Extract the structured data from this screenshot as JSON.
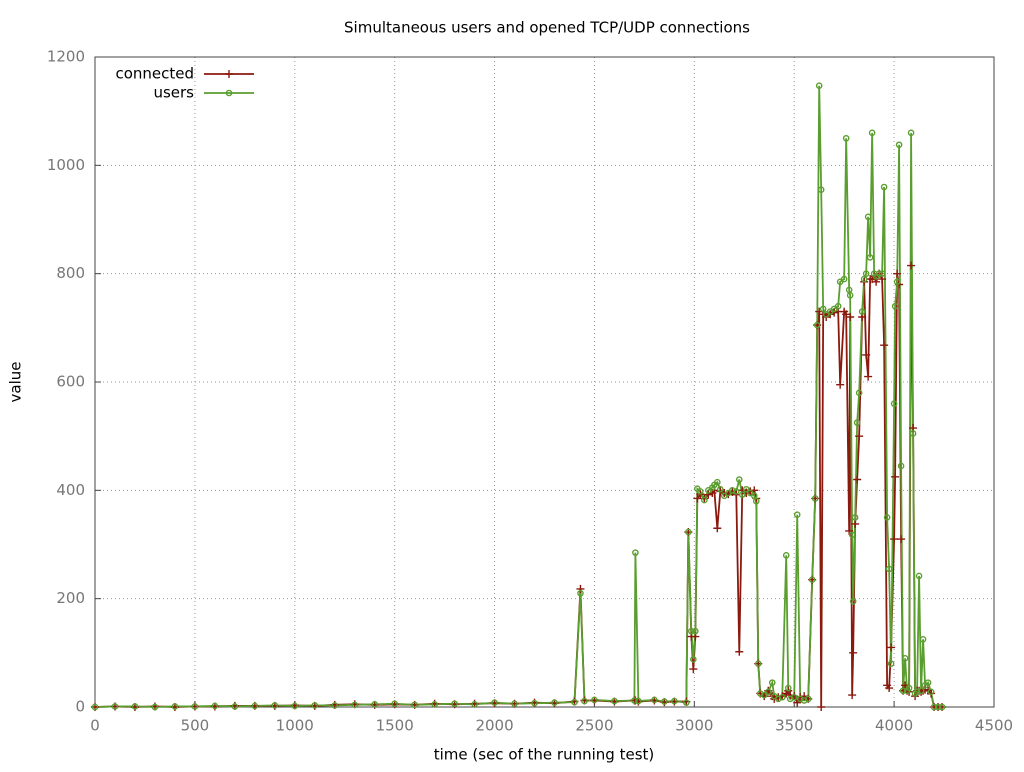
{
  "chart_data": {
    "type": "line",
    "title": "Simultaneous users and opened TCP/UDP connections",
    "xlabel": "time (sec of the running test)",
    "ylabel": "value",
    "x": [
      0,
      100,
      200,
      300,
      400,
      500,
      600,
      700,
      800,
      900,
      1000,
      1100,
      1200,
      1300,
      1400,
      1500,
      1600,
      1700,
      1800,
      1900,
      2000,
      2100,
      2200,
      2300,
      2400,
      2430,
      2450,
      2500,
      2600,
      2700,
      2705,
      2720,
      2800,
      2850,
      2900,
      2960,
      2970,
      2985,
      2995,
      3005,
      3015,
      3030,
      3050,
      3070,
      3090,
      3100,
      3115,
      3130,
      3150,
      3170,
      3190,
      3210,
      3225,
      3240,
      3260,
      3280,
      3300,
      3310,
      3320,
      3330,
      3350,
      3370,
      3390,
      3400,
      3420,
      3440,
      3460,
      3470,
      3480,
      3500,
      3515,
      3530,
      3550,
      3570,
      3590,
      3605,
      3615,
      3625,
      3635,
      3645,
      3660,
      3680,
      3700,
      3720,
      3730,
      3750,
      3760,
      3775,
      3780,
      3790,
      3795,
      3805,
      3815,
      3825,
      3840,
      3850,
      3860,
      3870,
      3880,
      3890,
      3900,
      3910,
      3925,
      3940,
      3950,
      3965,
      3975,
      3985,
      4000,
      4005,
      4015,
      4025,
      4035,
      4045,
      4055,
      4065,
      4075,
      4085,
      4095,
      4105,
      4115,
      4125,
      4135,
      4145,
      4155,
      4170,
      4185,
      4200,
      4220,
      4240
    ],
    "series": [
      {
        "name": "connected",
        "color": "#8b1a0e",
        "marker": "plus",
        "values": [
          0,
          1,
          0,
          1,
          0,
          1,
          1,
          2,
          2,
          2,
          3,
          2,
          4,
          5,
          4,
          5,
          4,
          6,
          5,
          6,
          7,
          6,
          8,
          7,
          10,
          218,
          12,
          12,
          10,
          12,
          12,
          10,
          12,
          9,
          10,
          10,
          323,
          130,
          70,
          130,
          385,
          393,
          385,
          392,
          395,
          400,
          330,
          398,
          395,
          393,
          397,
          392,
          102,
          400,
          395,
          398,
          400,
          385,
          80,
          25,
          20,
          30,
          20,
          15,
          18,
          20,
          25,
          30,
          22,
          20,
          8,
          18,
          20,
          15,
          235,
          385,
          705,
          730,
          0,
          725,
          720,
          725,
          728,
          730,
          595,
          730,
          725,
          325,
          720,
          22,
          100,
          338,
          420,
          500,
          720,
          785,
          650,
          610,
          790,
          790,
          795,
          785,
          800,
          790,
          668,
          40,
          35,
          110,
          310,
          425,
          800,
          780,
          310,
          30,
          40,
          30,
          28,
          815,
          515,
          20,
          30,
          30,
          28,
          30,
          32,
          30,
          25,
          0,
          0,
          0
        ]
      },
      {
        "name": "users",
        "color": "#5a9e2f",
        "marker": "circle",
        "values": [
          0,
          1,
          1,
          0,
          1,
          1,
          2,
          1,
          2,
          3,
          2,
          3,
          3,
          4,
          5,
          6,
          4,
          5,
          6,
          5,
          8,
          6,
          7,
          8,
          9,
          210,
          11,
          13,
          11,
          12,
          285,
          11,
          13,
          10,
          11,
          8,
          323,
          140,
          88,
          140,
          403,
          398,
          382,
          400,
          405,
          410,
          415,
          402,
          390,
          395,
          400,
          398,
          420,
          392,
          402,
          395,
          390,
          380,
          80,
          25,
          22,
          28,
          45,
          20,
          15,
          18,
          280,
          35,
          15,
          18,
          355,
          15,
          12,
          15,
          235,
          385,
          705,
          1147,
          955,
          735,
          725,
          730,
          735,
          740,
          785,
          790,
          1050,
          770,
          760,
          318,
          195,
          350,
          525,
          580,
          730,
          790,
          800,
          905,
          830,
          1060,
          800,
          795,
          800,
          800,
          960,
          350,
          255,
          80,
          560,
          740,
          785,
          1038,
          445,
          30,
          90,
          30,
          35,
          1060,
          505,
          25,
          28,
          242,
          30,
          125,
          40,
          45,
          28,
          0,
          0,
          0
        ]
      }
    ],
    "xlim": [
      0,
      4500
    ],
    "xticks": [
      0,
      500,
      1000,
      1500,
      2000,
      2500,
      3000,
      3500,
      4000,
      4500
    ],
    "ylim": [
      0,
      1200
    ],
    "yticks": [
      0,
      200,
      400,
      600,
      800,
      1000,
      1200
    ],
    "grid": true,
    "legend": "top-left"
  }
}
